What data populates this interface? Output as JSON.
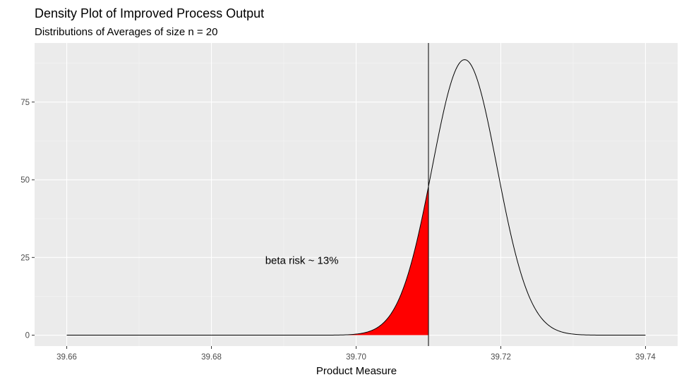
{
  "chart_data": {
    "type": "area",
    "title": "Density Plot of Improved Process Output",
    "subtitle": "Distributions of Averages of size n = 20",
    "xlabel": "Product Measure",
    "ylabel": "",
    "xlim": [
      39.66,
      39.74
    ],
    "ylim": [
      -3.5,
      94
    ],
    "x_ticks": [
      39.66,
      39.68,
      39.7,
      39.72,
      39.74
    ],
    "x_tick_labels": [
      "39.66",
      "39.68",
      "39.70",
      "39.72",
      "39.74"
    ],
    "y_ticks": [
      0,
      25,
      50,
      75
    ],
    "y_tick_labels": [
      "0",
      "25",
      "50",
      "75"
    ],
    "grid": true,
    "density": {
      "mean": 39.715,
      "sd": 0.0045,
      "x_min": 39.66,
      "x_max": 39.74
    },
    "vline_x": 39.71,
    "shaded_region": {
      "from": 39.66,
      "to": 39.71,
      "color": "#ff0000"
    },
    "annotation": {
      "text": "beta risk ~ 13%",
      "x": 39.6925,
      "y": 24
    },
    "colors": {
      "panel": "#ebebeb",
      "grid_major": "#ffffff",
      "grid_minor": "#f5f5f5",
      "line": "#000000"
    }
  }
}
